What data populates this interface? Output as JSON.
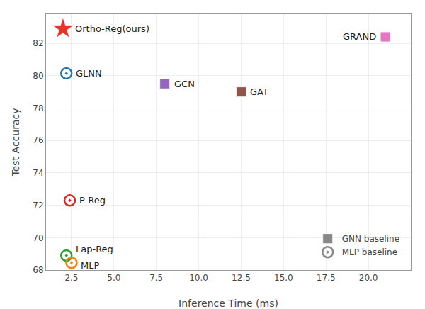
{
  "chart_data": {
    "type": "scatter",
    "x_label": "Inference Time (ms)",
    "y_label": "Test Accuracy",
    "xlim": [
      1.0,
      22.5
    ],
    "ylim": [
      68.0,
      83.8
    ],
    "xticks": [
      2.5,
      {
        "value": 5.0,
        "label": "5.0"
      },
      7.5,
      {
        "value": 10.0,
        "label": "10.0"
      },
      12.5,
      {
        "value": 15.0,
        "label": "15.0"
      },
      17.5,
      {
        "value": 20.0,
        "label": "20.0"
      }
    ],
    "yticks": [
      68,
      70,
      72,
      74,
      76,
      78,
      80,
      82
    ],
    "grid": true,
    "legend": "lower right",
    "series": [
      {
        "marker": "star",
        "labels": [
          "Ortho-Reg(ours)"
        ],
        "x": [
          2.0
        ],
        "values": [
          82.9
        ],
        "colors": [
          "#e8332a"
        ]
      },
      {
        "name": "MLP baseline",
        "marker": "circle",
        "color": "#888888",
        "labels": [
          "GLNN",
          "P-Reg",
          "Lap-Reg",
          "MLP"
        ],
        "x": [
          2.2,
          2.4,
          2.2,
          2.5
        ],
        "values": [
          80.15,
          72.3,
          68.9,
          68.45
        ],
        "colors": [
          "#1f77b4",
          "#d62728",
          "#2ca02c",
          "#ff7f0e"
        ]
      },
      {
        "name": "GNN baseline",
        "marker": "square",
        "color": "#888888",
        "labels": [
          "GCN",
          "GAT",
          "GRAND"
        ],
        "x": [
          8.0,
          12.5,
          21.0
        ],
        "values": [
          79.5,
          79.0,
          82.4
        ],
        "colors": [
          "#9467bd",
          "#8c564b",
          "#e377c2"
        ]
      }
    ]
  }
}
